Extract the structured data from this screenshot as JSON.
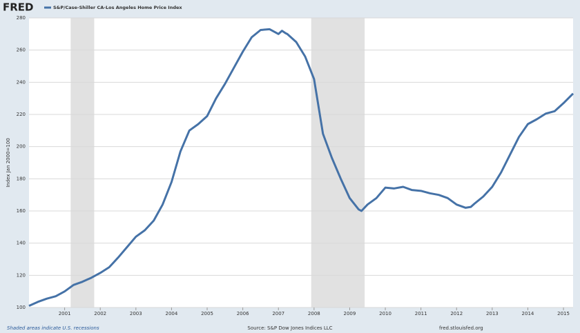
{
  "logo": "FRED",
  "footer": {
    "note": "Shaded areas indicate U.S. recessions",
    "source": "Source: S&P Dow Jones Indices LLC",
    "site": "fred.stlouisfed.org"
  },
  "chart_data": {
    "type": "line",
    "y_label": "Index Jan 2000=100",
    "x": [
      2000.0,
      2000.25,
      2000.5,
      2000.75,
      2001.0,
      2001.25,
      2001.5,
      2001.75,
      2002.0,
      2002.25,
      2002.5,
      2002.75,
      2003.0,
      2003.25,
      2003.5,
      2003.75,
      2004.0,
      2004.25,
      2004.5,
      2004.75,
      2005.0,
      2005.25,
      2005.5,
      2005.75,
      2006.0,
      2006.25,
      2006.5,
      2006.75,
      2007.0,
      2007.1,
      2007.2,
      2007.25,
      2007.5,
      2007.75,
      2008.0,
      2008.25,
      2008.5,
      2008.75,
      2009.0,
      2009.25,
      2009.33,
      2009.5,
      2009.75,
      2010.0,
      2010.25,
      2010.5,
      2010.75,
      2011.0,
      2011.25,
      2011.5,
      2011.75,
      2012.0,
      2012.25,
      2012.4,
      2012.5,
      2012.75,
      2013.0,
      2013.25,
      2013.5,
      2013.75,
      2014.0,
      2014.25,
      2014.5,
      2014.75,
      2015.0,
      2015.27
    ],
    "series": [
      {
        "name": "S&P/Case-Shiller CA-Los Angeles Home Price Index",
        "color": "#4572a7",
        "values": [
          101,
          103.5,
          105.5,
          107,
          110,
          114,
          116,
          118.5,
          121.5,
          125,
          131,
          137.5,
          144,
          148,
          154,
          164,
          178,
          197,
          210,
          214,
          219,
          230,
          239,
          249,
          259,
          268,
          272.5,
          273,
          270,
          272,
          270.5,
          270,
          265,
          256,
          242,
          208,
          193,
          180,
          168,
          161,
          160,
          164,
          168,
          174.5,
          174,
          175,
          173,
          172.5,
          171,
          170,
          168,
          164,
          162,
          162.5,
          164.5,
          169,
          175,
          184,
          195,
          206,
          214,
          217,
          220.5,
          222,
          227,
          233
        ]
      }
    ],
    "recessions": [
      [
        2001.17,
        2001.83
      ],
      [
        2007.92,
        2009.42
      ]
    ],
    "xlim": [
      2000.0,
      2015.27
    ],
    "xticks": [
      2001,
      2002,
      2003,
      2004,
      2005,
      2006,
      2007,
      2008,
      2009,
      2010,
      2011,
      2012,
      2013,
      2014,
      2015
    ],
    "ylim": [
      100,
      280
    ],
    "yticks": [
      100,
      120,
      140,
      160,
      180,
      200,
      220,
      240,
      260,
      280
    ],
    "grid": true
  }
}
